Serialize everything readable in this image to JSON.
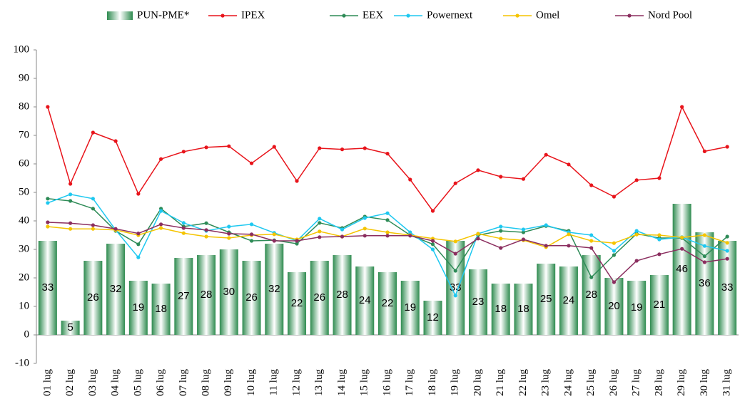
{
  "chart_data": {
    "type": "combo",
    "categories": [
      "01 lug",
      "02 lug",
      "03 lug",
      "04 lug",
      "05 lug",
      "06 lug",
      "07 lug",
      "08 lug",
      "09 lug",
      "10 lug",
      "11 lug",
      "12 lug",
      "13 lug",
      "14 lug",
      "15 lug",
      "16 lug",
      "17 lug",
      "18 lug",
      "19 lug",
      "20 lug",
      "21 lug",
      "22 lug",
      "23 lug",
      "24 lug",
      "25 lug",
      "26 lug",
      "27 lug",
      "28 lug",
      "29 lug",
      "30 lug",
      "31 lug"
    ],
    "series": [
      {
        "name": "PUN-PME*",
        "type": "bar",
        "color": "#2e8b4f",
        "values": [
          33,
          5,
          26,
          32,
          19,
          18,
          27,
          28,
          30,
          26,
          32,
          22,
          26,
          28,
          24,
          22,
          19,
          12,
          33,
          23,
          18,
          18,
          25,
          24,
          28,
          20,
          19,
          21,
          46,
          36,
          33
        ]
      },
      {
        "name": "IPEX",
        "type": "line",
        "color": "#e8141b",
        "values": [
          80,
          53,
          71,
          68,
          49.5,
          61.7,
          64.3,
          65.8,
          66.2,
          60.2,
          66,
          54,
          65.5,
          65.1,
          65.5,
          63.6,
          54.5,
          43.5,
          53.2,
          57.8,
          55.5,
          54.7,
          63.2,
          59.8,
          52.5,
          48.5,
          54.3,
          55,
          80,
          64.4,
          66
        ]
      },
      {
        "name": "EEX",
        "type": "line",
        "color": "#2e8b57",
        "values": [
          47.8,
          47,
          44.3,
          36.5,
          31.8,
          44.3,
          38,
          39.2,
          36,
          33,
          33.2,
          32,
          39.3,
          37.5,
          41.5,
          40.3,
          35,
          31.8,
          22.5,
          35,
          36.5,
          36,
          38.2,
          36.5,
          20.2,
          28,
          35.5,
          34,
          34,
          27.6,
          34.5
        ]
      },
      {
        "name": "Powernext",
        "type": "line",
        "color": "#1ec8f0",
        "values": [
          46.3,
          49.3,
          47.8,
          36.8,
          27.2,
          43.5,
          39.3,
          36.5,
          38,
          38.8,
          35.8,
          33,
          40.8,
          37,
          41,
          42.7,
          36,
          30,
          13.8,
          35.5,
          38,
          37,
          38.5,
          36,
          35,
          29.5,
          36.5,
          33.5,
          34.3,
          31.2,
          29.5
        ]
      },
      {
        "name": "Omel",
        "type": "line",
        "color": "#f5c400",
        "values": [
          38,
          37.2,
          37.2,
          36.8,
          35,
          37.5,
          35.7,
          34.5,
          34,
          35,
          35.3,
          33.5,
          36.3,
          34.5,
          37.3,
          36,
          35,
          33.8,
          32.8,
          35.5,
          33.8,
          33.2,
          30.8,
          35.3,
          33,
          32.2,
          35.2,
          35,
          34.2,
          35,
          32.3
        ]
      },
      {
        "name": "Nord Pool",
        "type": "line",
        "color": "#8b2e5f",
        "values": [
          39.5,
          39.2,
          38.5,
          37.2,
          35.6,
          38.8,
          37.5,
          36.8,
          35.5,
          35.3,
          33,
          33,
          34.3,
          34.5,
          34.8,
          34.8,
          34.8,
          33,
          28.5,
          33.8,
          30.5,
          33.5,
          31.3,
          31.3,
          30.5,
          18.5,
          26,
          28.3,
          30.2,
          25.5,
          26.7
        ]
      }
    ],
    "ylim": [
      -10,
      100
    ],
    "yticks": [
      -10,
      0,
      10,
      20,
      30,
      40,
      50,
      60,
      70,
      80,
      90,
      100
    ],
    "legend": "top"
  }
}
